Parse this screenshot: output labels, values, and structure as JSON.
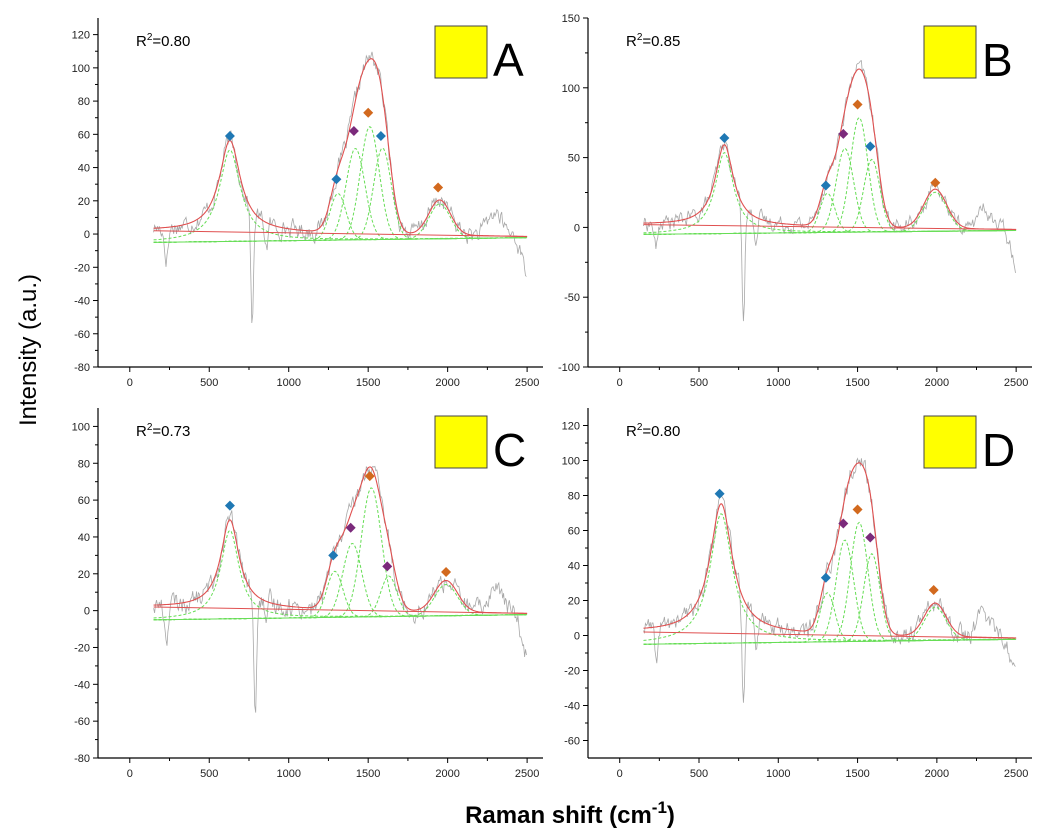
{
  "figure": {
    "ylabel": "Intensity (a.u.)",
    "xlabel": "Raman shift (cm",
    "xlabel_sup": "-1",
    "xlabel_end": ")"
  },
  "colors": {
    "raw": "#a8a8a8",
    "fit": "#e05050",
    "component": "#66dd55",
    "legend_box": "#ffff00",
    "marker_blue": "#1f78b4",
    "marker_purple": "#7b2a7b",
    "marker_orange": "#d2691e"
  },
  "chart_data": [
    {
      "type": "line",
      "panel": "A",
      "r2_label": "R",
      "r2_sup": "2",
      "r2_value": "=0.80",
      "xlim": [
        -200,
        2600
      ],
      "ylim": [
        -80,
        130
      ],
      "xticks": [
        0,
        500,
        1000,
        1500,
        2000,
        2500
      ],
      "yticks": [
        -80,
        -60,
        -40,
        -20,
        0,
        20,
        40,
        60,
        80,
        100,
        120
      ],
      "peaks": [
        {
          "x": 630,
          "amp": 55,
          "w": 80
        },
        {
          "x": 1310,
          "amp": 28,
          "w": 60
        },
        {
          "x": 1420,
          "amp": 55,
          "w": 70
        },
        {
          "x": 1510,
          "amp": 68,
          "w": 70
        },
        {
          "x": 1590,
          "amp": 55,
          "w": 65
        },
        {
          "x": 1950,
          "amp": 21,
          "w": 80
        }
      ],
      "markers": [
        {
          "x": 630,
          "y": 59,
          "color": "blue"
        },
        {
          "x": 1300,
          "y": 33,
          "color": "blue"
        },
        {
          "x": 1410,
          "y": 62,
          "color": "purple"
        },
        {
          "x": 1500,
          "y": 73,
          "color": "orange"
        },
        {
          "x": 1580,
          "y": 59,
          "color": "blue"
        },
        {
          "x": 1940,
          "y": 28,
          "color": "orange"
        }
      ],
      "dips": [
        {
          "x": 770,
          "y": -62
        }
      ]
    },
    {
      "type": "line",
      "panel": "B",
      "r2_label": "R",
      "r2_sup": "2",
      "r2_value": "=0.85",
      "xlim": [
        -200,
        2600
      ],
      "ylim": [
        -100,
        150
      ],
      "xticks": [
        0,
        500,
        1000,
        1500,
        2000,
        2500
      ],
      "yticks": [
        -100,
        -50,
        0,
        50,
        100,
        150
      ],
      "peaks": [
        {
          "x": 660,
          "amp": 58,
          "w": 70
        },
        {
          "x": 1310,
          "amp": 28,
          "w": 55
        },
        {
          "x": 1420,
          "amp": 60,
          "w": 65
        },
        {
          "x": 1510,
          "amp": 82,
          "w": 65
        },
        {
          "x": 1590,
          "amp": 52,
          "w": 60
        },
        {
          "x": 1990,
          "amp": 28,
          "w": 85
        }
      ],
      "markers": [
        {
          "x": 660,
          "y": 64,
          "color": "blue"
        },
        {
          "x": 1300,
          "y": 30,
          "color": "blue"
        },
        {
          "x": 1410,
          "y": 67,
          "color": "purple"
        },
        {
          "x": 1500,
          "y": 88,
          "color": "orange"
        },
        {
          "x": 1580,
          "y": 58,
          "color": "blue"
        },
        {
          "x": 1990,
          "y": 32,
          "color": "orange"
        }
      ],
      "dips": [
        {
          "x": 780,
          "y": -72
        }
      ]
    },
    {
      "type": "line",
      "panel": "C",
      "r2_label": "R",
      "r2_sup": "2",
      "r2_value": "=0.73",
      "xlim": [
        -200,
        2600
      ],
      "ylim": [
        -80,
        110
      ],
      "xticks": [
        0,
        500,
        1000,
        1500,
        2000,
        2500
      ],
      "yticks": [
        -80,
        -60,
        -40,
        -20,
        0,
        20,
        40,
        60,
        80,
        100
      ],
      "peaks": [
        {
          "x": 630,
          "amp": 48,
          "w": 70
        },
        {
          "x": 1290,
          "amp": 25,
          "w": 60
        },
        {
          "x": 1400,
          "amp": 40,
          "w": 70
        },
        {
          "x": 1520,
          "amp": 70,
          "w": 75
        },
        {
          "x": 1630,
          "amp": 22,
          "w": 60
        },
        {
          "x": 1990,
          "amp": 17,
          "w": 85
        }
      ],
      "markers": [
        {
          "x": 630,
          "y": 57,
          "color": "blue"
        },
        {
          "x": 1280,
          "y": 30,
          "color": "blue"
        },
        {
          "x": 1390,
          "y": 45,
          "color": "purple"
        },
        {
          "x": 1510,
          "y": 73,
          "color": "orange"
        },
        {
          "x": 1620,
          "y": 24,
          "color": "purple"
        },
        {
          "x": 1990,
          "y": 21,
          "color": "orange"
        }
      ],
      "dips": [
        {
          "x": 790,
          "y": -62
        }
      ]
    },
    {
      "type": "line",
      "panel": "D",
      "r2_label": "R",
      "r2_sup": "2",
      "r2_value": "=0.80",
      "xlim": [
        -200,
        2600
      ],
      "ylim": [
        -70,
        130
      ],
      "xticks": [
        0,
        500,
        1000,
        1500,
        2000,
        2500
      ],
      "yticks": [
        -60,
        -40,
        -20,
        0,
        20,
        40,
        60,
        80,
        100,
        120
      ],
      "peaks": [
        {
          "x": 640,
          "amp": 74,
          "w": 85
        },
        {
          "x": 1310,
          "amp": 28,
          "w": 55
        },
        {
          "x": 1420,
          "amp": 58,
          "w": 65
        },
        {
          "x": 1510,
          "amp": 68,
          "w": 65
        },
        {
          "x": 1590,
          "amp": 50,
          "w": 60
        },
        {
          "x": 1990,
          "amp": 19,
          "w": 80
        }
      ],
      "markers": [
        {
          "x": 630,
          "y": 81,
          "color": "blue"
        },
        {
          "x": 1300,
          "y": 33,
          "color": "blue"
        },
        {
          "x": 1410,
          "y": 64,
          "color": "purple"
        },
        {
          "x": 1500,
          "y": 72,
          "color": "orange"
        },
        {
          "x": 1580,
          "y": 56,
          "color": "purple"
        },
        {
          "x": 1980,
          "y": 26,
          "color": "orange"
        }
      ],
      "dips": [
        {
          "x": 780,
          "y": -52
        }
      ]
    }
  ]
}
